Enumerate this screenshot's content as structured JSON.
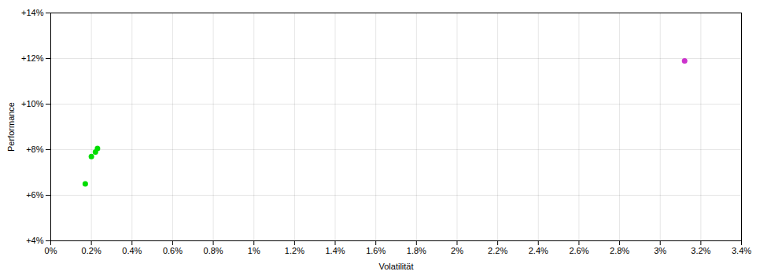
{
  "chart_data": {
    "type": "scatter",
    "xlabel": "Volatilität",
    "ylabel": "Performance",
    "xlim": [
      0.0,
      0.034
    ],
    "ylim": [
      0.04,
      0.14
    ],
    "xticks": [
      {
        "value": 0.0,
        "label": "0%"
      },
      {
        "value": 0.002,
        "label": "0.2%"
      },
      {
        "value": 0.004,
        "label": "0.4%"
      },
      {
        "value": 0.006,
        "label": "0.6%"
      },
      {
        "value": 0.008,
        "label": "0.8%"
      },
      {
        "value": 0.01,
        "label": "1%"
      },
      {
        "value": 0.012,
        "label": "1.2%"
      },
      {
        "value": 0.014,
        "label": "1.4%"
      },
      {
        "value": 0.016,
        "label": "1.6%"
      },
      {
        "value": 0.018,
        "label": "1.8%"
      },
      {
        "value": 0.02,
        "label": "2%"
      },
      {
        "value": 0.022,
        "label": "2.2%"
      },
      {
        "value": 0.024,
        "label": "2.4%"
      },
      {
        "value": 0.026,
        "label": "2.6%"
      },
      {
        "value": 0.028,
        "label": "2.8%"
      },
      {
        "value": 0.03,
        "label": "3%"
      },
      {
        "value": 0.032,
        "label": "3.2%"
      },
      {
        "value": 0.034,
        "label": "3.4%"
      }
    ],
    "yticks": [
      {
        "value": 0.04,
        "label": "+4%"
      },
      {
        "value": 0.06,
        "label": "+6%"
      },
      {
        "value": 0.08,
        "label": "+8%"
      },
      {
        "value": 0.1,
        "label": "+10%"
      },
      {
        "value": 0.12,
        "label": "+12%"
      },
      {
        "value": 0.14,
        "label": "+14%"
      }
    ],
    "grid": true,
    "series": [
      {
        "color": "#00dd00",
        "x": [
          0.0017,
          0.002,
          0.0022,
          0.0023
        ],
        "values": [
          0.065,
          0.077,
          0.079,
          0.0805
        ]
      },
      {
        "color": "#cc33cc",
        "x": [
          0.0312
        ],
        "values": [
          0.119
        ]
      }
    ]
  }
}
